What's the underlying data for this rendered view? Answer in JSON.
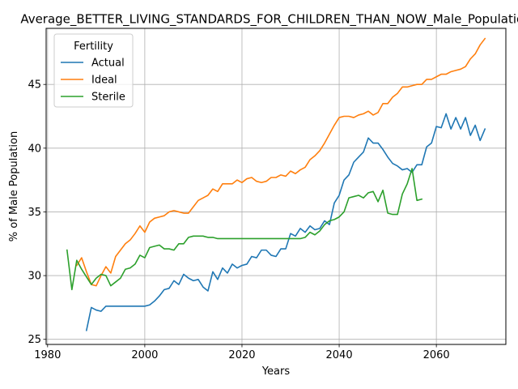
{
  "chart_data": {
    "type": "line",
    "title": "Average_BETTER_LIVING_STANDARDS_FOR_CHILDREN_THAN_NOW_Male_Population",
    "xlabel": "Years",
    "ylabel": "% of Male Population",
    "xlim": [
      1979.7,
      2074.3
    ],
    "ylim": [
      24.6,
      49.4
    ],
    "xticks": [
      1980,
      2000,
      2020,
      2040,
      2060
    ],
    "yticks": [
      25,
      30,
      35,
      40,
      45
    ],
    "grid": true,
    "legend": {
      "title": "Fertility",
      "placement": "top-left"
    },
    "series": [
      {
        "name": "Actual",
        "color": "#1f77b4",
        "points": [
          [
            1988,
            25.7
          ],
          [
            1989,
            27.5
          ],
          [
            1990,
            27.3
          ],
          [
            1991,
            27.2
          ],
          [
            1992,
            27.6
          ],
          [
            1993,
            27.6
          ],
          [
            1994,
            27.6
          ],
          [
            1995,
            27.6
          ],
          [
            1996,
            27.6
          ],
          [
            1997,
            27.6
          ],
          [
            1998,
            27.6
          ],
          [
            1999,
            27.6
          ],
          [
            2000,
            27.6
          ],
          [
            2001,
            27.7
          ],
          [
            2002,
            28.0
          ],
          [
            2003,
            28.4
          ],
          [
            2004,
            28.9
          ],
          [
            2005,
            29.0
          ],
          [
            2006,
            29.6
          ],
          [
            2007,
            29.3
          ],
          [
            2008,
            30.1
          ],
          [
            2009,
            29.8
          ],
          [
            2010,
            29.6
          ],
          [
            2011,
            29.7
          ],
          [
            2012,
            29.1
          ],
          [
            2013,
            28.8
          ],
          [
            2014,
            30.3
          ],
          [
            2015,
            29.7
          ],
          [
            2016,
            30.6
          ],
          [
            2017,
            30.2
          ],
          [
            2018,
            30.9
          ],
          [
            2019,
            30.6
          ],
          [
            2020,
            30.8
          ],
          [
            2021,
            30.9
          ],
          [
            2022,
            31.5
          ],
          [
            2023,
            31.4
          ],
          [
            2024,
            32.0
          ],
          [
            2025,
            32.0
          ],
          [
            2026,
            31.6
          ],
          [
            2027,
            31.5
          ],
          [
            2028,
            32.1
          ],
          [
            2029,
            32.1
          ],
          [
            2030,
            33.3
          ],
          [
            2031,
            33.1
          ],
          [
            2032,
            33.7
          ],
          [
            2033,
            33.4
          ],
          [
            2034,
            33.9
          ],
          [
            2035,
            33.6
          ],
          [
            2036,
            33.7
          ],
          [
            2037,
            34.3
          ],
          [
            2038,
            34.0
          ],
          [
            2039,
            35.7
          ],
          [
            2040,
            36.3
          ],
          [
            2041,
            37.5
          ],
          [
            2042,
            37.9
          ],
          [
            2043,
            38.9
          ],
          [
            2044,
            39.3
          ],
          [
            2045,
            39.7
          ],
          [
            2046,
            40.8
          ],
          [
            2047,
            40.4
          ],
          [
            2048,
            40.4
          ],
          [
            2049,
            39.9
          ],
          [
            2050,
            39.3
          ],
          [
            2051,
            38.8
          ],
          [
            2052,
            38.6
          ],
          [
            2053,
            38.3
          ],
          [
            2054,
            38.4
          ],
          [
            2055,
            38.1
          ],
          [
            2056,
            38.7
          ],
          [
            2057,
            38.7
          ],
          [
            2058,
            40.1
          ],
          [
            2059,
            40.4
          ],
          [
            2060,
            41.7
          ],
          [
            2061,
            41.6
          ],
          [
            2062,
            42.7
          ],
          [
            2063,
            41.5
          ],
          [
            2064,
            42.4
          ],
          [
            2065,
            41.5
          ],
          [
            2066,
            42.4
          ],
          [
            2067,
            41.0
          ],
          [
            2068,
            41.8
          ],
          [
            2069,
            40.6
          ],
          [
            2070,
            41.5
          ]
        ]
      },
      {
        "name": "Ideal",
        "color": "#ff7f0e",
        "points": [
          [
            1986,
            30.8
          ],
          [
            1987,
            31.4
          ],
          [
            1988,
            30.3
          ],
          [
            1989,
            29.3
          ],
          [
            1990,
            29.2
          ],
          [
            1991,
            30.0
          ],
          [
            1992,
            30.7
          ],
          [
            1993,
            30.2
          ],
          [
            1994,
            31.5
          ],
          [
            1995,
            32.0
          ],
          [
            1996,
            32.5
          ],
          [
            1997,
            32.8
          ],
          [
            1998,
            33.3
          ],
          [
            1999,
            33.9
          ],
          [
            2000,
            33.4
          ],
          [
            2001,
            34.2
          ],
          [
            2002,
            34.5
          ],
          [
            2003,
            34.6
          ],
          [
            2004,
            34.7
          ],
          [
            2005,
            35.0
          ],
          [
            2006,
            35.1
          ],
          [
            2007,
            35.0
          ],
          [
            2008,
            34.9
          ],
          [
            2009,
            34.9
          ],
          [
            2010,
            35.4
          ],
          [
            2011,
            35.9
          ],
          [
            2012,
            36.1
          ],
          [
            2013,
            36.3
          ],
          [
            2014,
            36.8
          ],
          [
            2015,
            36.6
          ],
          [
            2016,
            37.2
          ],
          [
            2017,
            37.2
          ],
          [
            2018,
            37.2
          ],
          [
            2019,
            37.5
          ],
          [
            2020,
            37.3
          ],
          [
            2021,
            37.6
          ],
          [
            2022,
            37.7
          ],
          [
            2023,
            37.4
          ],
          [
            2024,
            37.3
          ],
          [
            2025,
            37.4
          ],
          [
            2026,
            37.7
          ],
          [
            2027,
            37.7
          ],
          [
            2028,
            37.9
          ],
          [
            2029,
            37.8
          ],
          [
            2030,
            38.2
          ],
          [
            2031,
            38.0
          ],
          [
            2032,
            38.3
          ],
          [
            2033,
            38.5
          ],
          [
            2034,
            39.1
          ],
          [
            2035,
            39.4
          ],
          [
            2036,
            39.8
          ],
          [
            2037,
            40.4
          ],
          [
            2038,
            41.1
          ],
          [
            2039,
            41.8
          ],
          [
            2040,
            42.4
          ],
          [
            2041,
            42.5
          ],
          [
            2042,
            42.5
          ],
          [
            2043,
            42.4
          ],
          [
            2044,
            42.6
          ],
          [
            2045,
            42.7
          ],
          [
            2046,
            42.9
          ],
          [
            2047,
            42.6
          ],
          [
            2048,
            42.8
          ],
          [
            2049,
            43.5
          ],
          [
            2050,
            43.5
          ],
          [
            2051,
            44.0
          ],
          [
            2052,
            44.3
          ],
          [
            2053,
            44.8
          ],
          [
            2054,
            44.8
          ],
          [
            2055,
            44.9
          ],
          [
            2056,
            45.0
          ],
          [
            2057,
            45.0
          ],
          [
            2058,
            45.4
          ],
          [
            2059,
            45.4
          ],
          [
            2060,
            45.6
          ],
          [
            2061,
            45.8
          ],
          [
            2062,
            45.8
          ],
          [
            2063,
            46.0
          ],
          [
            2064,
            46.1
          ],
          [
            2065,
            46.2
          ],
          [
            2066,
            46.4
          ],
          [
            2067,
            47.0
          ],
          [
            2068,
            47.4
          ],
          [
            2069,
            48.1
          ],
          [
            2070,
            48.6
          ]
        ]
      },
      {
        "name": "Sterile",
        "color": "#2ca02c",
        "points": [
          [
            1984,
            32.0
          ],
          [
            1985,
            28.9
          ],
          [
            1986,
            31.2
          ],
          [
            1987,
            30.5
          ],
          [
            1988,
            29.9
          ],
          [
            1989,
            29.3
          ],
          [
            1990,
            29.8
          ],
          [
            1991,
            30.1
          ],
          [
            1992,
            30.0
          ],
          [
            1993,
            29.2
          ],
          [
            1994,
            29.5
          ],
          [
            1995,
            29.8
          ],
          [
            1996,
            30.5
          ],
          [
            1997,
            30.6
          ],
          [
            1998,
            30.9
          ],
          [
            1999,
            31.6
          ],
          [
            2000,
            31.4
          ],
          [
            2001,
            32.2
          ],
          [
            2002,
            32.3
          ],
          [
            2003,
            32.4
          ],
          [
            2004,
            32.1
          ],
          [
            2005,
            32.1
          ],
          [
            2006,
            32.0
          ],
          [
            2007,
            32.5
          ],
          [
            2008,
            32.5
          ],
          [
            2009,
            33.0
          ],
          [
            2010,
            33.1
          ],
          [
            2011,
            33.1
          ],
          [
            2012,
            33.1
          ],
          [
            2013,
            33.0
          ],
          [
            2014,
            33.0
          ],
          [
            2015,
            32.9
          ],
          [
            2016,
            32.9
          ],
          [
            2017,
            32.9
          ],
          [
            2018,
            32.9
          ],
          [
            2019,
            32.9
          ],
          [
            2020,
            32.9
          ],
          [
            2021,
            32.9
          ],
          [
            2022,
            32.9
          ],
          [
            2023,
            32.9
          ],
          [
            2024,
            32.9
          ],
          [
            2025,
            32.9
          ],
          [
            2026,
            32.9
          ],
          [
            2027,
            32.9
          ],
          [
            2028,
            32.9
          ],
          [
            2029,
            32.9
          ],
          [
            2030,
            32.9
          ],
          [
            2031,
            32.9
          ],
          [
            2032,
            32.9
          ],
          [
            2033,
            33.0
          ],
          [
            2034,
            33.4
          ],
          [
            2035,
            33.2
          ],
          [
            2036,
            33.5
          ],
          [
            2037,
            34.0
          ],
          [
            2038,
            34.3
          ],
          [
            2039,
            34.4
          ],
          [
            2040,
            34.6
          ],
          [
            2041,
            35.0
          ],
          [
            2042,
            36.1
          ],
          [
            2043,
            36.2
          ],
          [
            2044,
            36.3
          ],
          [
            2045,
            36.1
          ],
          [
            2046,
            36.5
          ],
          [
            2047,
            36.6
          ],
          [
            2048,
            35.8
          ],
          [
            2049,
            36.7
          ],
          [
            2050,
            34.9
          ],
          [
            2051,
            34.8
          ],
          [
            2052,
            34.8
          ],
          [
            2053,
            36.4
          ],
          [
            2054,
            37.2
          ],
          [
            2055,
            38.4
          ],
          [
            2056,
            35.9
          ],
          [
            2057,
            36.0
          ]
        ]
      }
    ]
  }
}
